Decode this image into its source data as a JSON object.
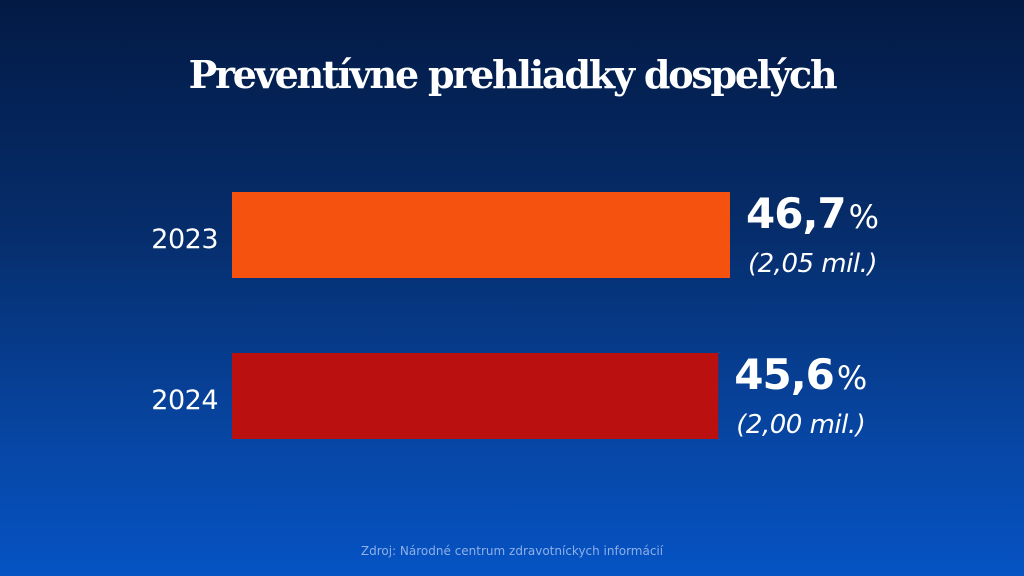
{
  "chart_data": {
    "type": "bar",
    "orientation": "horizontal",
    "title": "Preventívne prehliadky dospelých",
    "categories": [
      "2023",
      "2024"
    ],
    "values": [
      46.7,
      45.6
    ],
    "value_labels": [
      "46,7",
      "45,6"
    ],
    "unit_label": "%",
    "secondary_labels": [
      "(2,05 mil.)",
      "(2,00 mil.)"
    ],
    "secondary_values_millions": [
      2.05,
      2.0
    ],
    "colors": [
      "#f6520f",
      "#bb1010"
    ],
    "xlabel": "",
    "ylabel": "",
    "xlim": [
      0,
      46.7
    ],
    "grid": false,
    "legend": "none"
  },
  "source": "Zdroj: Národné centrum zdravotníckych informácií"
}
